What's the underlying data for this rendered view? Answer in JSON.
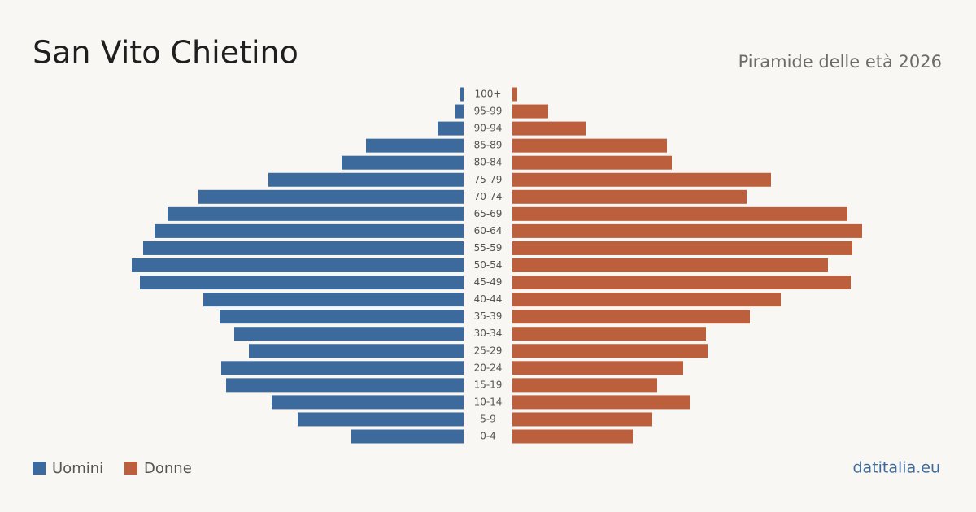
{
  "chart_data": {
    "type": "pyramid",
    "title": "San Vito Chietino",
    "subtitle": "Piramide delle età 2026",
    "source": "datitalia.eu",
    "categories": [
      "0-4",
      "5-9",
      "10-14",
      "15-19",
      "20-24",
      "25-29",
      "30-34",
      "35-39",
      "40-44",
      "45-49",
      "50-54",
      "55-59",
      "60-64",
      "65-69",
      "70-74",
      "75-79",
      "80-84",
      "85-89",
      "90-94",
      "95-99",
      "100+"
    ],
    "series": [
      {
        "name": "Uomini",
        "color": "#3d6a9c",
        "values": [
          69,
          102,
          118,
          146,
          149,
          132,
          141,
          150,
          160,
          199,
          204,
          197,
          190,
          182,
          163,
          120,
          75,
          60,
          16,
          5,
          2
        ]
      },
      {
        "name": "Donne",
        "color": "#bb5f3d",
        "values": [
          74,
          86,
          109,
          89,
          105,
          120,
          119,
          146,
          165,
          208,
          194,
          209,
          215,
          206,
          144,
          159,
          98,
          95,
          45,
          22,
          3
        ]
      }
    ]
  }
}
